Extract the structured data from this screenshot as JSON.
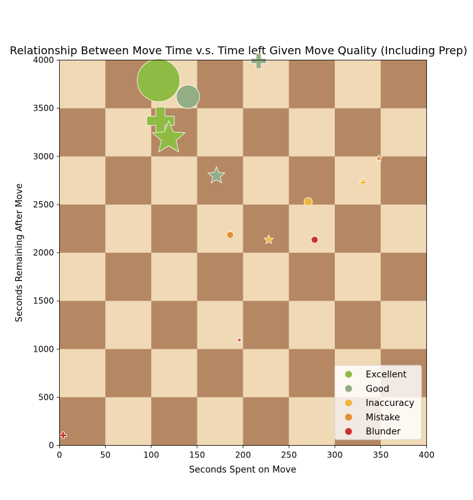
{
  "chart_data": {
    "type": "scatter",
    "title": "Relationship Between Move Time v.s. Time left Given Move Quality (Including Prep)",
    "xlabel": "Seconds Spent on Move",
    "ylabel": "Seconds Remaining After Move",
    "xlim": [
      0,
      400
    ],
    "ylim": [
      0,
      4000
    ],
    "x_ticks": [
      0,
      50,
      100,
      150,
      200,
      250,
      300,
      350,
      400
    ],
    "y_ticks": [
      0,
      500,
      1000,
      1500,
      2000,
      2500,
      3000,
      3500,
      4000
    ],
    "background": "chessboard",
    "board_colors": {
      "light": "#f0d9b5",
      "dark": "#b58863"
    },
    "legend_position": "lower-right",
    "series": [
      {
        "name": "Excellent",
        "color": "#8fbb45"
      },
      {
        "name": "Good",
        "color": "#93ad84"
      },
      {
        "name": "Inaccuracy",
        "color": "#f2b63c"
      },
      {
        "name": "Mistake",
        "color": "#e68e2e"
      },
      {
        "name": "Blunder",
        "color": "#cc3333"
      }
    ],
    "points": [
      {
        "x": 108,
        "y": 3790,
        "category": "Excellent",
        "marker": "circle",
        "size": 31
      },
      {
        "x": 140,
        "y": 3620,
        "category": "Good",
        "marker": "circle",
        "size": 17
      },
      {
        "x": 217,
        "y": 3990,
        "category": "Good",
        "marker": "plus",
        "size": 11
      },
      {
        "x": 110,
        "y": 3370,
        "category": "Excellent",
        "marker": "plus",
        "size": 20
      },
      {
        "x": 119,
        "y": 3190,
        "category": "Excellent",
        "marker": "star",
        "size": 25
      },
      {
        "x": 171,
        "y": 2800,
        "category": "Good",
        "marker": "star",
        "size": 13
      },
      {
        "x": 271,
        "y": 2530,
        "category": "Inaccuracy",
        "marker": "circle",
        "size": 6
      },
      {
        "x": 331,
        "y": 2730,
        "category": "Inaccuracy",
        "marker": "plus",
        "size": 5
      },
      {
        "x": 348,
        "y": 2980,
        "category": "Mistake",
        "marker": "star",
        "size": 5
      },
      {
        "x": 186,
        "y": 2185,
        "category": "Mistake",
        "marker": "circle",
        "size": 5
      },
      {
        "x": 228,
        "y": 2135,
        "category": "Inaccuracy",
        "marker": "star",
        "size": 7
      },
      {
        "x": 278,
        "y": 2135,
        "category": "Blunder",
        "marker": "circle",
        "size": 5
      },
      {
        "x": 196,
        "y": 1095,
        "category": "Blunder",
        "marker": "star",
        "size": 4
      },
      {
        "x": 4,
        "y": 105,
        "category": "Blunder",
        "marker": "plus",
        "size": 5
      }
    ]
  }
}
